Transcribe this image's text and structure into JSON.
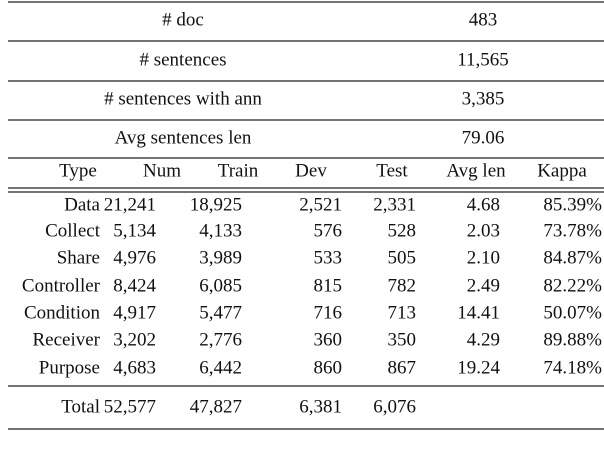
{
  "summary": {
    "rows": [
      {
        "label": "# doc",
        "value": "483"
      },
      {
        "label": "# sentences",
        "value": "11,565"
      },
      {
        "label": "# sentences with ann",
        "value": "3,385"
      },
      {
        "label": "Avg sentences len",
        "value": "79.06"
      }
    ]
  },
  "table": {
    "header": [
      "Type",
      "Num",
      "Train",
      "Dev",
      "Test",
      "Avg len",
      "Kappa"
    ],
    "rows": [
      [
        "Data",
        "21,241",
        "18,925",
        "2,521",
        "2,331",
        "4.68",
        "85.39%"
      ],
      [
        "Collect",
        "5,134",
        "4,133",
        "576",
        "528",
        "2.03",
        "73.78%"
      ],
      [
        "Share",
        "4,976",
        "3,989",
        "533",
        "505",
        "2.10",
        "84.87%"
      ],
      [
        "Controller",
        "8,424",
        "6,085",
        "815",
        "782",
        "2.49",
        "82.22%"
      ],
      [
        "Condition",
        "4,917",
        "5,477",
        "716",
        "713",
        "14.41",
        "50.07%"
      ],
      [
        "Receiver",
        "3,202",
        "2,776",
        "360",
        "350",
        "4.29",
        "89.88%"
      ],
      [
        "Purpose",
        "4,683",
        "6,442",
        "860",
        "867",
        "19.24",
        "74.18%"
      ]
    ],
    "total": [
      "Total",
      "52,577",
      "47,827",
      "6,381",
      "6,076"
    ]
  }
}
